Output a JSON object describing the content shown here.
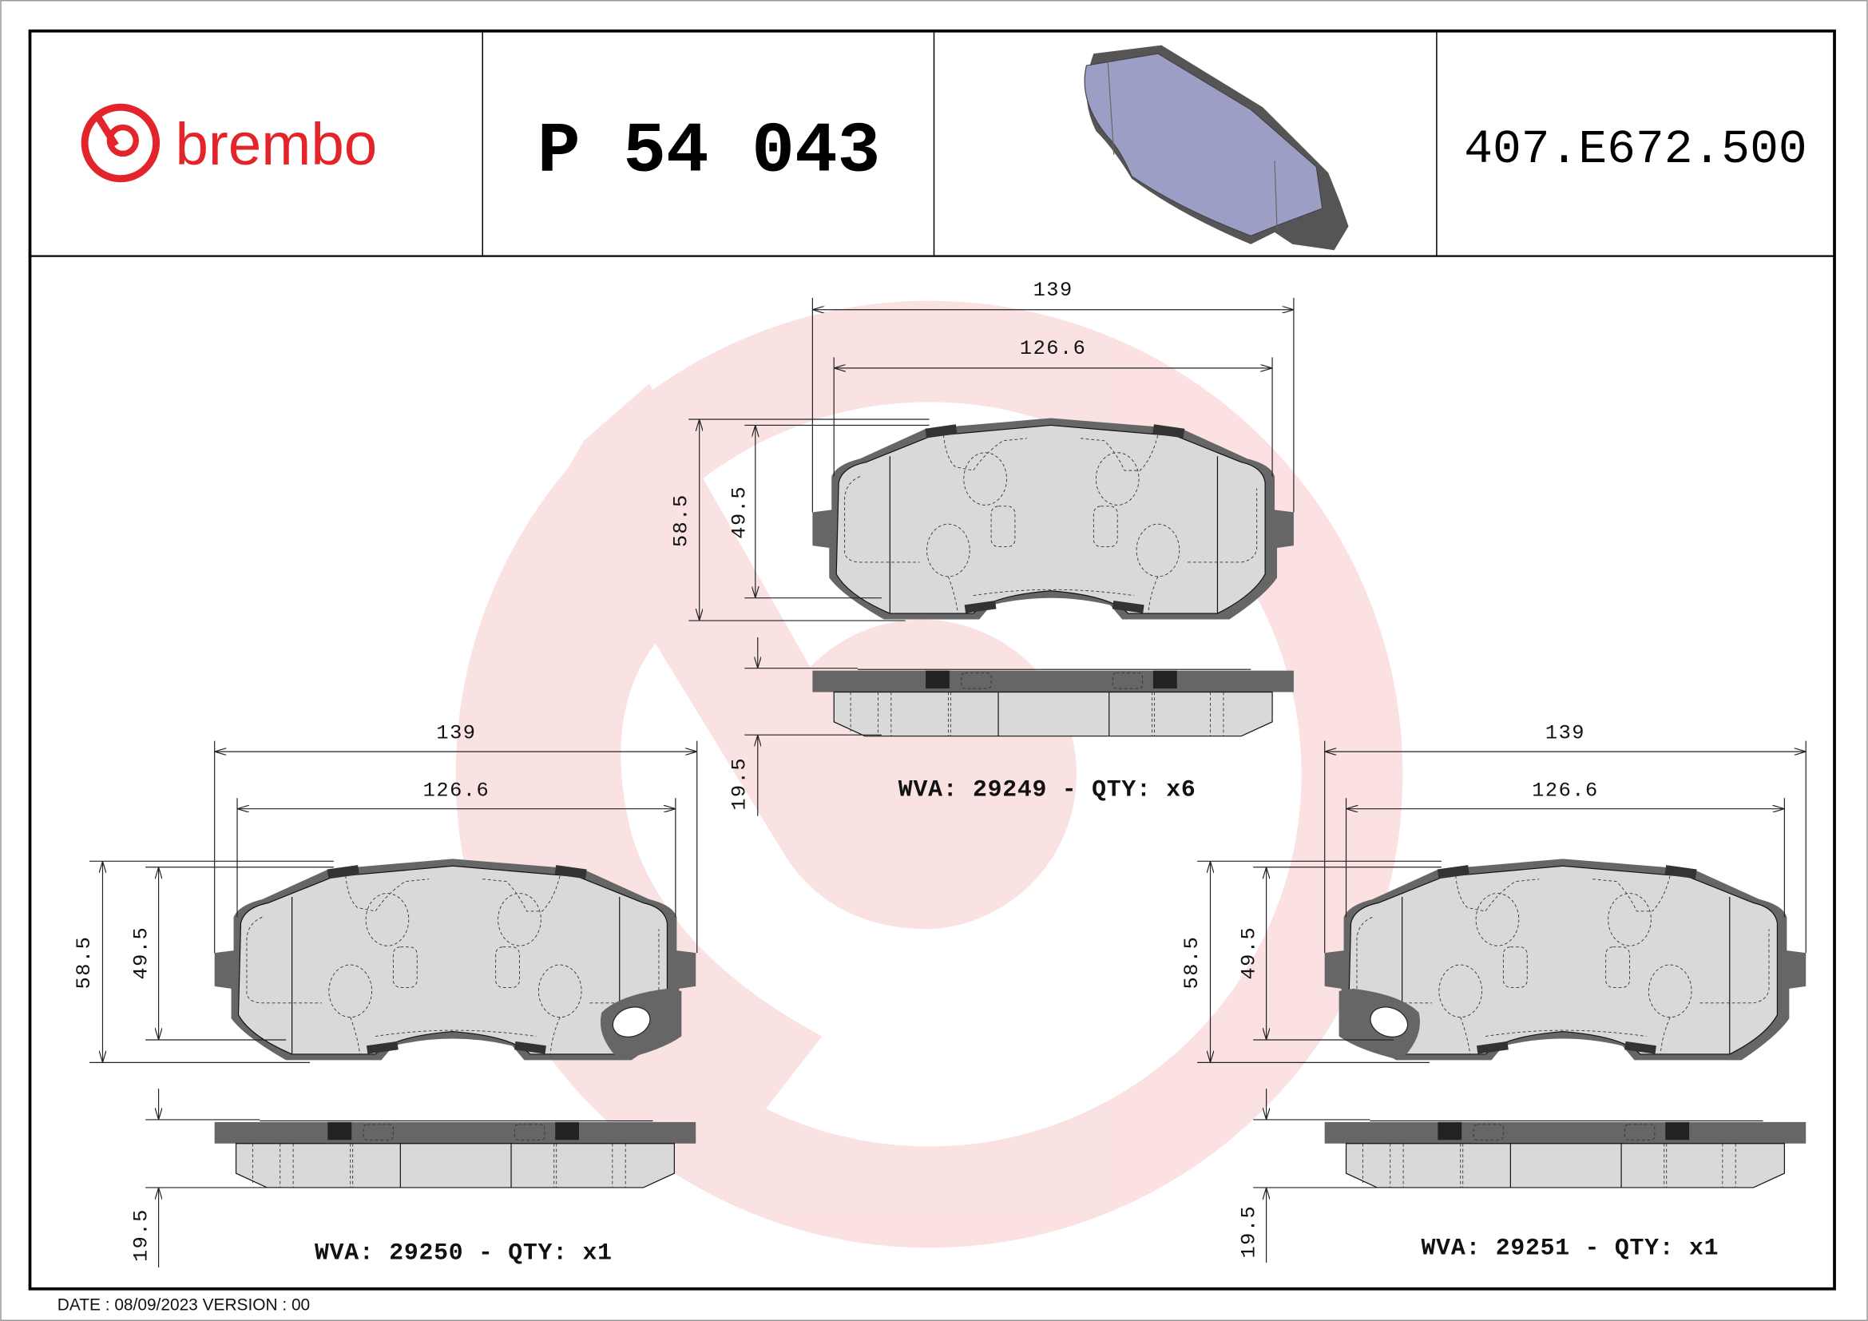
{
  "header": {
    "brand": "brembo",
    "part_number": "P 54 043",
    "code": "407.E672.500"
  },
  "colors": {
    "brand_red": "#e3252b",
    "watermark": "#f5c6c8",
    "plate": "#666666",
    "friction": "#d9d9d9",
    "render_blue": "#9c9ec6"
  },
  "views": [
    {
      "width_outer": "139",
      "width_inner": "126.6",
      "height_outer": "58.5",
      "height_inner": "49.5",
      "thickness": "19.5",
      "label": "WVA: 29249 - QTY: x6"
    },
    {
      "width_outer": "139",
      "width_inner": "126.6",
      "height_outer": "58.5",
      "height_inner": "49.5",
      "thickness": "19.5",
      "label": "WVA: 29250 - QTY: x1"
    },
    {
      "width_outer": "139",
      "width_inner": "126.6",
      "height_outer": "58.5",
      "height_inner": "49.5",
      "thickness": "19.5",
      "label": "WVA: 29251 - QTY: x1"
    }
  ],
  "footer": {
    "text": "DATE : 08/09/2023 VERSION : 00"
  }
}
